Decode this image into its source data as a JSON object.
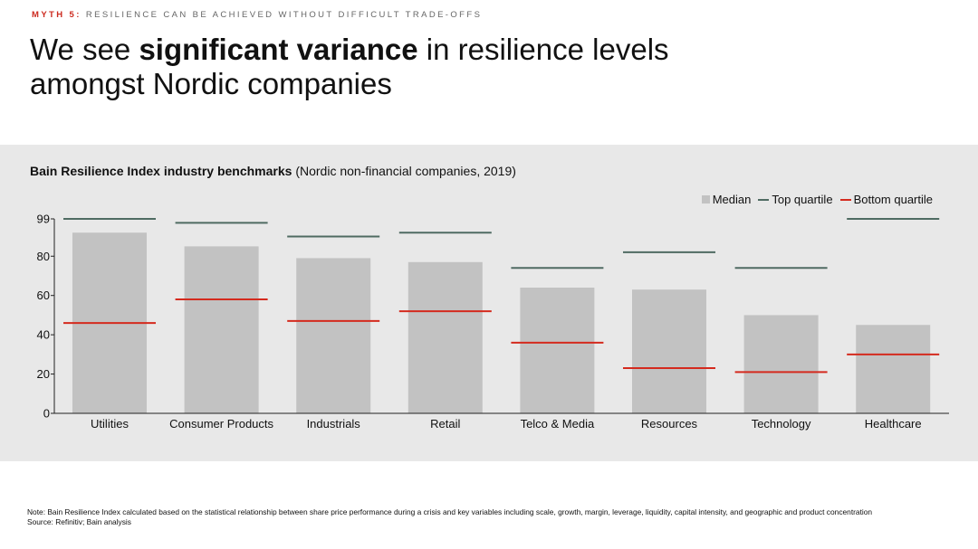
{
  "header": {
    "kicker_label": "MYTH 5:",
    "kicker_text": "RESILIENCE CAN BE ACHIEVED WITHOUT DIFFICULT TRADE-OFFS",
    "headline_pre": "We see ",
    "headline_bold": "significant variance",
    "headline_post": " in resilience levels amongst Nordic companies"
  },
  "chart_title": {
    "bold": "Bain Resilience Index industry benchmarks",
    "normal": " (Nordic non-financial companies, 2019)"
  },
  "chart_data": {
    "type": "bar",
    "title": "Bain Resilience Index industry benchmarks (Nordic non-financial companies, 2019)",
    "categories": [
      "Utilities",
      "Consumer Products",
      "Industrials",
      "Retail",
      "Telco & Media",
      "Resources",
      "Technology",
      "Healthcare"
    ],
    "series": [
      {
        "name": "Median",
        "kind": "bar",
        "color": "#c2c2c2",
        "values": [
          92,
          85,
          79,
          77,
          64,
          63,
          50,
          45
        ]
      },
      {
        "name": "Top quartile",
        "kind": "marker",
        "color": "#4f6b62",
        "values": [
          99,
          97,
          90,
          92,
          74,
          82,
          74,
          99
        ]
      },
      {
        "name": "Bottom quartile",
        "kind": "marker",
        "color": "#d42a1e",
        "values": [
          46,
          58,
          47,
          52,
          36,
          23,
          21,
          30
        ]
      }
    ],
    "yticks": [
      0,
      20,
      40,
      60,
      80,
      99
    ],
    "ylim": [
      0,
      99
    ],
    "grid": false,
    "legend_position": "top-right"
  },
  "legend": {
    "median": "Median",
    "top": "Top quartile",
    "bottom": "Bottom quartile"
  },
  "footer": {
    "note": "Note: Bain Resilience Index calculated based on the statistical relationship between share price performance during a crisis and key variables including scale, growth, margin, leverage, liquidity, capital intensity, and geographic and product concentration",
    "source": "Source: Refinitiv; Bain analysis"
  }
}
